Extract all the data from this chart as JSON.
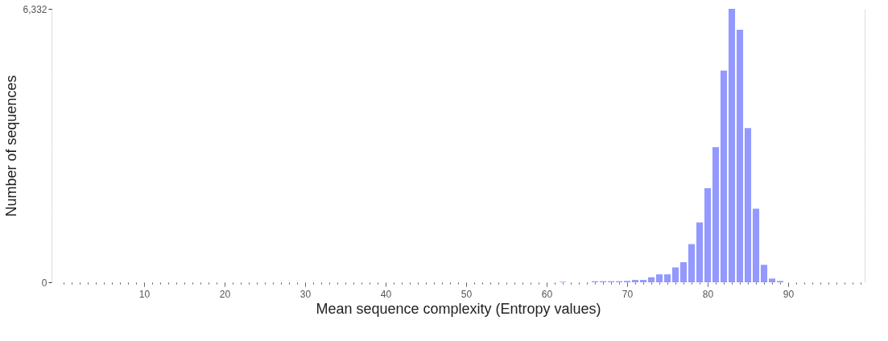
{
  "chart_data": {
    "type": "bar",
    "xlabel": "Mean sequence complexity (Entropy values)",
    "ylabel": "Number of sequences",
    "x": [
      62,
      66,
      67,
      68,
      69,
      70,
      71,
      72,
      73,
      74,
      75,
      76,
      77,
      78,
      79,
      80,
      81,
      82,
      83,
      84,
      85,
      86,
      87,
      88,
      89
    ],
    "series": [
      {
        "color": "#9399ff",
        "values": [
          12,
          25,
          25,
          25,
          25,
          31,
          55,
          55,
          117,
          184,
          184,
          344,
          466,
          884,
          1387,
          2178,
          3129,
          4903,
          6332,
          5848,
          3571,
          1706,
          405,
          86,
          31
        ]
      }
    ],
    "xlim": [
      -1,
      99
    ],
    "xticks": [
      {
        "value": 0,
        "label": null
      },
      {
        "value": 1,
        "label": null
      },
      {
        "value": 2,
        "label": null
      },
      {
        "value": 3,
        "label": null
      },
      {
        "value": 4,
        "label": null
      },
      {
        "value": 5,
        "label": null
      },
      {
        "value": 6,
        "label": null
      },
      {
        "value": 7,
        "label": null
      },
      {
        "value": 8,
        "label": null
      },
      {
        "value": 9,
        "label": null
      },
      10,
      {
        "value": 11,
        "label": null
      },
      {
        "value": 12,
        "label": null
      },
      {
        "value": 13,
        "label": null
      },
      {
        "value": 14,
        "label": null
      },
      {
        "value": 15,
        "label": null
      },
      {
        "value": 16,
        "label": null
      },
      {
        "value": 17,
        "label": null
      },
      {
        "value": 18,
        "label": null
      },
      {
        "value": 19,
        "label": null
      },
      20,
      {
        "value": 21,
        "label": null
      },
      {
        "value": 22,
        "label": null
      },
      {
        "value": 23,
        "label": null
      },
      {
        "value": 24,
        "label": null
      },
      {
        "value": 25,
        "label": null
      },
      {
        "value": 26,
        "label": null
      },
      {
        "value": 27,
        "label": null
      },
      {
        "value": 28,
        "label": null
      },
      {
        "value": 29,
        "label": null
      },
      30,
      {
        "value": 31,
        "label": null
      },
      {
        "value": 32,
        "label": null
      },
      {
        "value": 33,
        "label": null
      },
      {
        "value": 34,
        "label": null
      },
      {
        "value": 35,
        "label": null
      },
      {
        "value": 36,
        "label": null
      },
      {
        "value": 37,
        "label": null
      },
      {
        "value": 38,
        "label": null
      },
      {
        "value": 39,
        "label": null
      },
      40,
      {
        "value": 41,
        "label": null
      },
      {
        "value": 42,
        "label": null
      },
      {
        "value": 43,
        "label": null
      },
      {
        "value": 44,
        "label": null
      },
      {
        "value": 45,
        "label": null
      },
      {
        "value": 46,
        "label": null
      },
      {
        "value": 47,
        "label": null
      },
      {
        "value": 48,
        "label": null
      },
      {
        "value": 49,
        "label": null
      },
      50,
      {
        "value": 51,
        "label": null
      },
      {
        "value": 52,
        "label": null
      },
      {
        "value": 53,
        "label": null
      },
      {
        "value": 54,
        "label": null
      },
      {
        "value": 55,
        "label": null
      },
      {
        "value": 56,
        "label": null
      },
      {
        "value": 57,
        "label": null
      },
      {
        "value": 58,
        "label": null
      },
      {
        "value": 59,
        "label": null
      },
      60,
      {
        "value": 61,
        "label": null
      },
      {
        "value": 62,
        "label": null
      },
      {
        "value": 63,
        "label": null
      },
      {
        "value": 64,
        "label": null
      },
      {
        "value": 65,
        "label": null
      },
      {
        "value": 66,
        "label": null
      },
      {
        "value": 67,
        "label": null
      },
      {
        "value": 68,
        "label": null
      },
      {
        "value": 69,
        "label": null
      },
      70,
      {
        "value": 71,
        "label": null
      },
      {
        "value": 72,
        "label": null
      },
      {
        "value": 73,
        "label": null
      },
      {
        "value": 74,
        "label": null
      },
      {
        "value": 75,
        "label": null
      },
      {
        "value": 76,
        "label": null
      },
      {
        "value": 77,
        "label": null
      },
      {
        "value": 78,
        "label": null
      },
      {
        "value": 79,
        "label": null
      },
      80,
      {
        "value": 81,
        "label": null
      },
      {
        "value": 82,
        "label": null
      },
      {
        "value": 83,
        "label": null
      },
      {
        "value": 84,
        "label": null
      },
      {
        "value": 85,
        "label": null
      },
      {
        "value": 86,
        "label": null
      },
      {
        "value": 87,
        "label": null
      },
      {
        "value": 88,
        "label": null
      },
      {
        "value": 89,
        "label": null
      },
      90,
      {
        "value": 91,
        "label": null
      },
      {
        "value": 92,
        "label": null
      },
      {
        "value": 93,
        "label": null
      },
      {
        "value": 94,
        "label": null
      },
      {
        "value": 95,
        "label": null
      },
      {
        "value": 96,
        "label": null
      },
      {
        "value": 97,
        "label": null
      },
      {
        "value": 98,
        "label": null
      },
      {
        "value": 99,
        "label": null
      }
    ],
    "ylim": [
      0,
      6332
    ],
    "yticks": [
      0,
      {
        "value": 1583,
        "label": null
      },
      {
        "value": 3166,
        "label": null
      },
      {
        "value": 4749,
        "label": null
      },
      {
        "value": 6332,
        "label": "6,332"
      }
    ],
    "grid": "y"
  }
}
